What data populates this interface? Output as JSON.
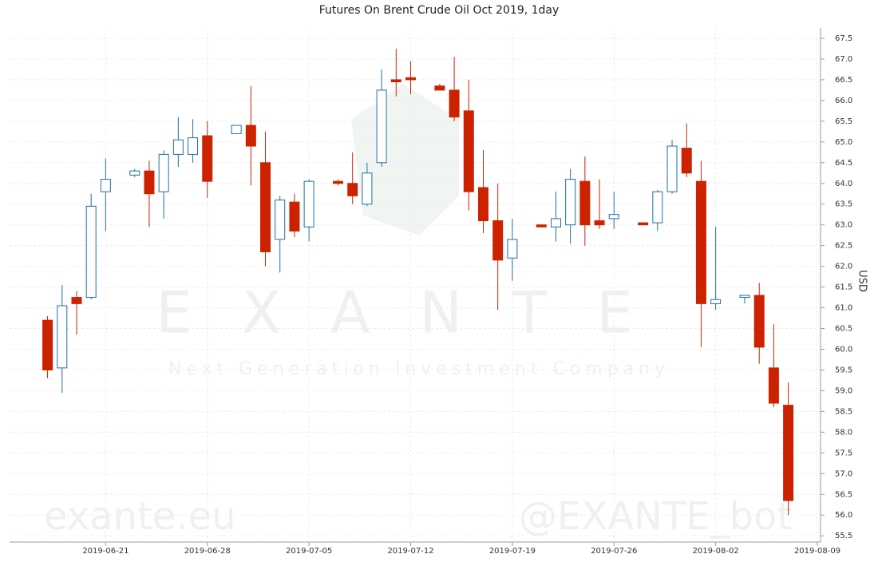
{
  "chart_data": {
    "type": "candlestick",
    "title": "Futures On Brent Crude Oil Oct 2019, 1day",
    "y_label": "USD",
    "watermarks": [
      "EXANTE",
      "Next Generation Investment Company",
      "exante.eu",
      "@EXANTE_bot"
    ],
    "x": [
      "2019-06-17",
      "2019-06-18",
      "2019-06-19",
      "2019-06-20",
      "2019-06-21",
      "2019-06-23",
      "2019-06-24",
      "2019-06-25",
      "2019-06-26",
      "2019-06-27",
      "2019-06-28",
      "2019-06-30",
      "2019-07-01",
      "2019-07-02",
      "2019-07-03",
      "2019-07-04",
      "2019-07-05",
      "2019-07-07",
      "2019-07-08",
      "2019-07-09",
      "2019-07-10",
      "2019-07-11",
      "2019-07-12",
      "2019-07-14",
      "2019-07-15",
      "2019-07-16",
      "2019-07-17",
      "2019-07-18",
      "2019-07-19",
      "2019-07-21",
      "2019-07-22",
      "2019-07-23",
      "2019-07-24",
      "2019-07-25",
      "2019-07-26",
      "2019-07-28",
      "2019-07-29",
      "2019-07-30",
      "2019-07-31",
      "2019-08-01",
      "2019-08-02",
      "2019-08-04",
      "2019-08-05",
      "2019-08-06",
      "2019-08-07"
    ],
    "open": [
      60.7,
      59.55,
      61.25,
      61.25,
      63.8,
      64.2,
      64.3,
      63.8,
      64.7,
      64.7,
      65.15,
      65.2,
      65.4,
      64.5,
      62.65,
      63.55,
      62.95,
      64.05,
      64.0,
      63.5,
      64.5,
      66.5,
      66.55,
      66.35,
      66.25,
      65.75,
      63.9,
      63.1,
      62.2,
      63.0,
      62.95,
      63.0,
      64.05,
      63.1,
      63.15,
      63.05,
      63.05,
      63.8,
      64.85,
      64.05,
      61.1,
      61.25,
      61.3,
      59.55,
      58.65
    ],
    "high": [
      60.8,
      61.55,
      61.4,
      63.75,
      64.6,
      64.35,
      64.55,
      64.8,
      65.6,
      65.55,
      65.5,
      65.4,
      66.35,
      65.25,
      63.7,
      63.75,
      64.1,
      64.1,
      64.75,
      64.5,
      66.75,
      67.25,
      66.95,
      66.4,
      67.05,
      66.5,
      64.8,
      64.0,
      63.15,
      63.0,
      63.8,
      64.35,
      64.65,
      64.1,
      63.8,
      63.05,
      63.85,
      65.05,
      65.45,
      64.55,
      62.95,
      61.3,
      61.6,
      60.6,
      59.2
    ],
    "low": [
      59.3,
      58.95,
      60.35,
      61.2,
      62.85,
      64.15,
      62.95,
      63.15,
      64.4,
      64.5,
      63.65,
      65.2,
      63.95,
      62.0,
      61.85,
      62.7,
      62.6,
      63.95,
      63.5,
      63.45,
      64.4,
      66.1,
      66.15,
      66.25,
      65.5,
      63.35,
      62.8,
      60.95,
      61.65,
      62.95,
      62.6,
      62.55,
      62.5,
      62.9,
      62.9,
      63.0,
      62.85,
      63.75,
      64.15,
      60.05,
      60.95,
      61.1,
      59.65,
      58.6,
      56.0
    ],
    "close": [
      59.5,
      61.05,
      61.1,
      63.45,
      64.1,
      64.3,
      63.75,
      64.7,
      65.05,
      65.1,
      64.05,
      65.4,
      64.9,
      62.35,
      63.6,
      62.85,
      64.05,
      64.0,
      63.7,
      64.25,
      66.25,
      66.45,
      66.5,
      66.25,
      65.6,
      63.8,
      63.1,
      62.15,
      62.65,
      62.95,
      63.15,
      64.1,
      63.0,
      63.0,
      63.25,
      63.0,
      63.8,
      64.9,
      64.25,
      61.1,
      61.2,
      61.3,
      60.05,
      58.7,
      56.35
    ],
    "up_color": "#1f6fa6",
    "down_color": "#cc2200",
    "xlim": [
      "2019-06-14",
      "2019-08-09"
    ],
    "xticks": [
      "2019-06-21",
      "2019-06-28",
      "2019-07-05",
      "2019-07-12",
      "2019-07-19",
      "2019-07-26",
      "2019-08-02",
      "2019-08-09"
    ],
    "ylim": [
      55.35,
      67.75
    ],
    "yticks": [
      {
        "value": 55.5,
        "label": "55.5"
      },
      {
        "value": 56,
        "label": "56.0"
      },
      {
        "value": 56.5,
        "label": "56.5"
      },
      {
        "value": 57,
        "label": "57.0"
      },
      {
        "value": 57.5,
        "label": "57.5"
      },
      {
        "value": 58,
        "label": "58.0"
      },
      {
        "value": 58.5,
        "label": "58.5"
      },
      {
        "value": 59,
        "label": "59.0"
      },
      {
        "value": 59.5,
        "label": "59.5"
      },
      {
        "value": 60,
        "label": "60.0"
      },
      {
        "value": 60.5,
        "label": "60.5"
      },
      {
        "value": 61,
        "label": "61.0"
      },
      {
        "value": 61.5,
        "label": "61.5"
      },
      {
        "value": 62,
        "label": "62.0"
      },
      {
        "value": 62.5,
        "label": "62.5"
      },
      {
        "value": 63,
        "label": "63.0"
      },
      {
        "value": 63.5,
        "label": "63.5"
      },
      {
        "value": 64,
        "label": "64.0"
      },
      {
        "value": 64.5,
        "label": "64.5"
      },
      {
        "value": 65,
        "label": "65.0"
      },
      {
        "value": 65.5,
        "label": "65.5"
      },
      {
        "value": 66,
        "label": "66.0"
      },
      {
        "value": 66.5,
        "label": "66.5"
      },
      {
        "value": 67,
        "label": "67.0"
      },
      {
        "value": 67.5,
        "label": "67.5"
      }
    ],
    "grid": true
  }
}
